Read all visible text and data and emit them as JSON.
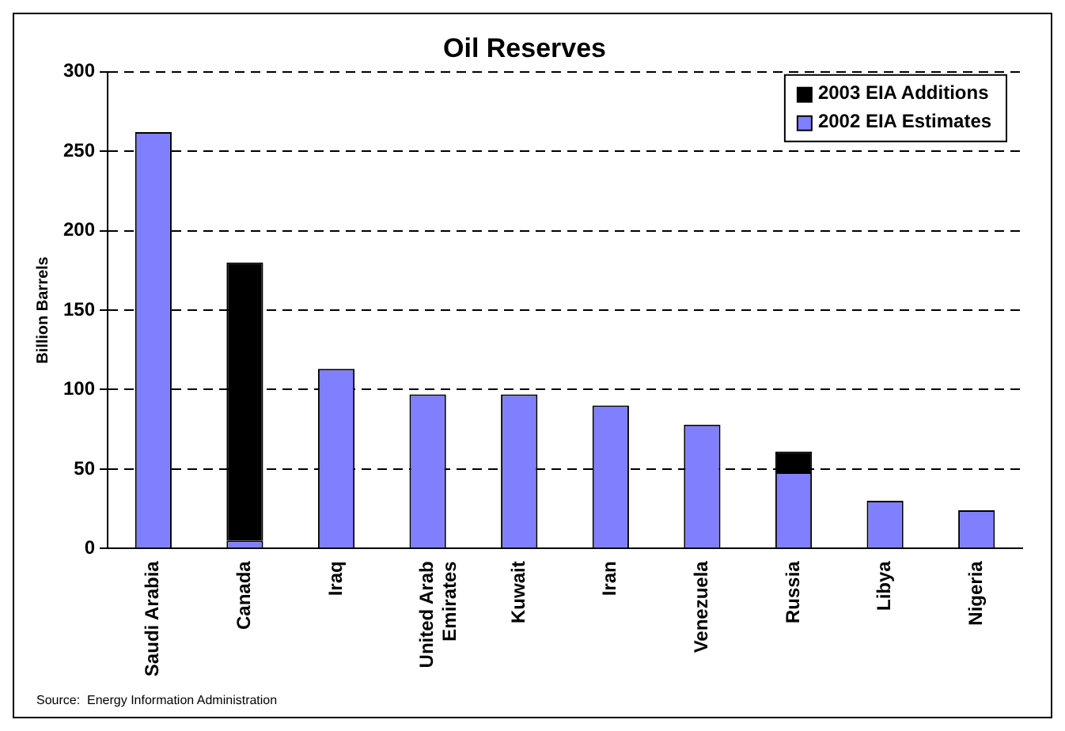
{
  "chart_data": {
    "type": "bar",
    "title": "Oil Reserves",
    "ylabel": "Billion Barrels",
    "categories": [
      "Saudi Arabia",
      "Canada",
      "Iraq",
      "United Arab Emirates",
      "Kuwait",
      "Iran",
      "Venezuela",
      "Russia",
      "Libya",
      "Nigeria"
    ],
    "series": [
      {
        "name": "2002 EIA Estimates",
        "color": "#8080ff",
        "values": [
          262,
          5,
          113,
          97,
          97,
          90,
          78,
          48,
          30,
          24
        ]
      },
      {
        "name": "2003 EIA Additions",
        "color": "#000000",
        "values": [
          0,
          175,
          0,
          0,
          0,
          0,
          0,
          13,
          0,
          0
        ]
      }
    ],
    "stacked": true,
    "ylim": [
      0,
      300
    ],
    "yticks": [
      0,
      50,
      100,
      150,
      200,
      250,
      300
    ],
    "grid": "y",
    "line_style": "dashed",
    "legend": "top right",
    "annotations": [
      "Source:  Energy Information Administration"
    ]
  }
}
